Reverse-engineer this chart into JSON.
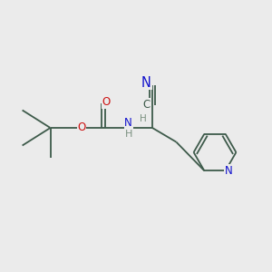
{
  "background_color": "#ebebeb",
  "bond_color": "#3d5a4a",
  "N_color": "#1010cc",
  "O_color": "#cc1010",
  "C_color": "#3d5a4a",
  "H_color": "#7a9080",
  "figsize": [
    3.0,
    3.0
  ],
  "dpi": 100,
  "bond_lw": 1.3,
  "font_size": 8.5,
  "xlim": [
    0,
    10
  ],
  "ylim": [
    0,
    10
  ]
}
